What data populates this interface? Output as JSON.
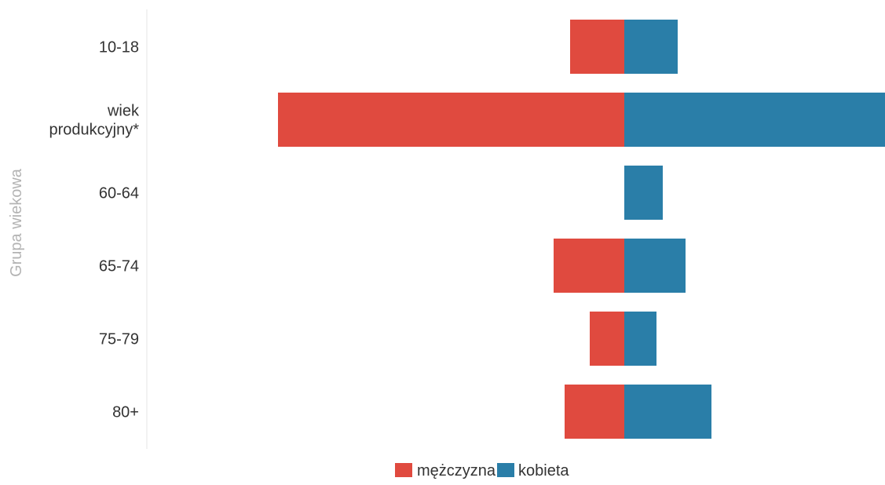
{
  "chart_data": {
    "type": "bar",
    "orientation": "horizontal",
    "stacked": "diverging",
    "categories": [
      "10-18",
      "wiek produkcyjny*",
      "60-64",
      "65-74",
      "75-79",
      "80+"
    ],
    "category_lines": [
      [
        "10-18"
      ],
      [
        "wiek",
        "produkcyjny*"
      ],
      [
        "60-64"
      ],
      [
        "65-74"
      ],
      [
        "75-79"
      ],
      [
        "80+"
      ]
    ],
    "ylabel": "Grupa wiekowa",
    "xlabel": "",
    "series": [
      {
        "name": "mężczyzna",
        "color": "#e04a3f",
        "direction": "left",
        "values": [
          69,
          441,
          0,
          90,
          44,
          76
        ]
      },
      {
        "name": "kobieta",
        "color": "#2a7ea8",
        "direction": "right",
        "values": [
          68,
          332,
          49,
          78,
          41,
          111
        ]
      }
    ],
    "legend_position": "bottom-center",
    "grid": false
  }
}
